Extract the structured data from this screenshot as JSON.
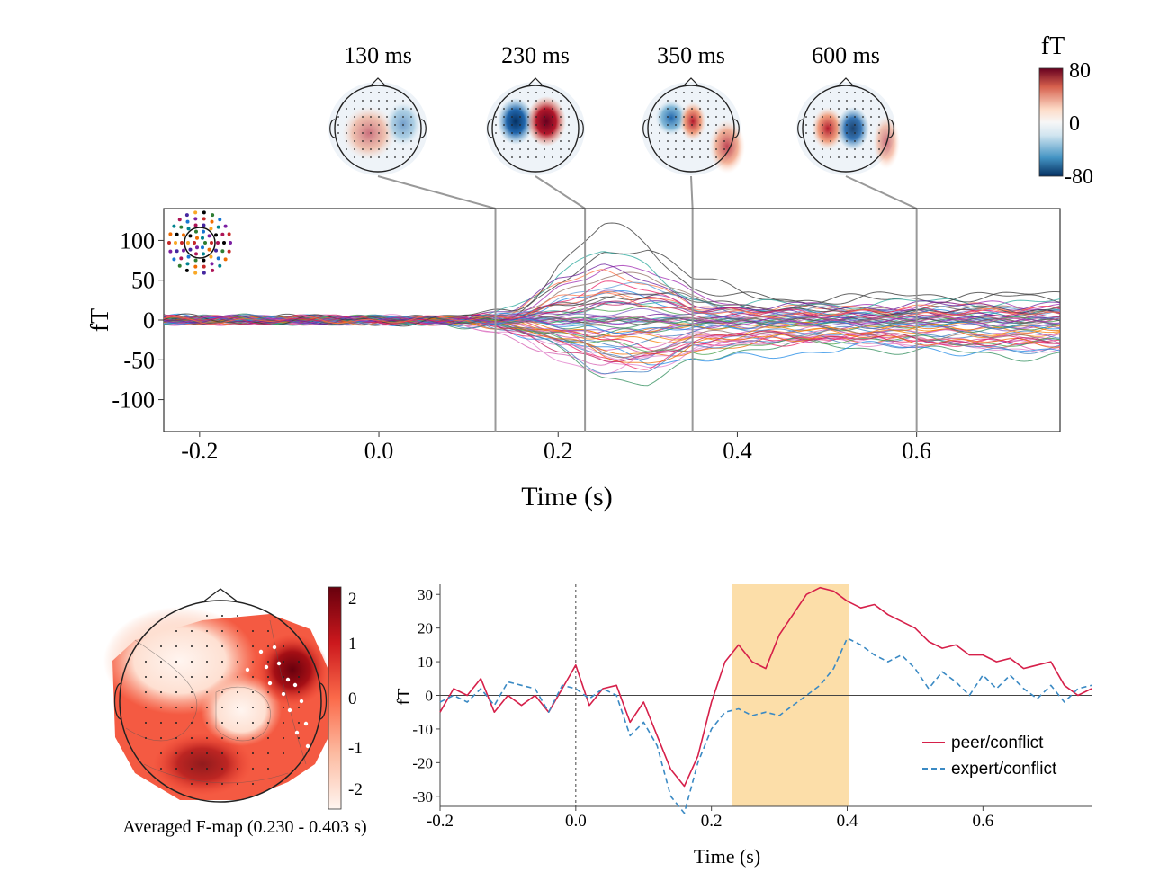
{
  "top_panel": {
    "topomaps": [
      {
        "label": "130 ms",
        "time": 0.13,
        "pattern": "weak"
      },
      {
        "label": "230 ms",
        "time": 0.23,
        "pattern": "strong-dipole"
      },
      {
        "label": "350 ms",
        "time": 0.35,
        "pattern": "medium"
      },
      {
        "label": "600 ms",
        "time": 0.6,
        "pattern": "central-dipole"
      }
    ],
    "colorbar": {
      "unit": "fT",
      "ticks": [
        "80",
        "0",
        "-80"
      ],
      "colors": [
        "#67001f",
        "#d6604d",
        "#fddbc7",
        "#f7f7f7",
        "#d1e5f0",
        "#4393c3",
        "#053061"
      ]
    }
  },
  "bottom_left": {
    "caption": "Averaged F-map (0.230 - 0.403 s)",
    "colorbar_ticks": [
      "2",
      "1",
      "0",
      "-1",
      "-2"
    ],
    "colors": [
      "#fff5f0",
      "#fcbba1",
      "#fb6a4a",
      "#cb181d",
      "#67000d"
    ]
  },
  "chart_data": [
    {
      "type": "line",
      "title": "",
      "xlabel": "Time (s)",
      "ylabel": "fT",
      "xlim": [
        -0.24,
        0.76
      ],
      "ylim": [
        -140,
        140
      ],
      "xticks": [
        "-0.2",
        "0.0",
        "0.2",
        "0.4",
        "0.6"
      ],
      "yticks": [
        "100",
        "50",
        "0",
        "-50",
        "-100"
      ],
      "grid": false,
      "legend": "none",
      "series_count": 60,
      "envelope": {
        "x": [
          -0.24,
          0.0,
          0.05,
          0.1,
          0.15,
          0.2,
          0.25,
          0.3,
          0.35,
          0.4,
          0.5,
          0.6,
          0.7,
          0.76
        ],
        "max": [
          8,
          8,
          12,
          25,
          35,
          110,
          135,
          110,
          60,
          50,
          48,
          55,
          55,
          55
        ],
        "min": [
          -8,
          -8,
          -12,
          -25,
          -50,
          -80,
          -95,
          -90,
          -60,
          -55,
          -60,
          -70,
          -80,
          -80
        ]
      },
      "markers_x": [
        0.13,
        0.23,
        0.35,
        0.6
      ]
    },
    {
      "type": "line",
      "title": "",
      "xlabel": "Time (s)",
      "ylabel": "fT",
      "xlim": [
        -0.2,
        0.76
      ],
      "ylim": [
        -33,
        33
      ],
      "xticks": [
        "-0.2",
        "0.0",
        "0.2",
        "0.4",
        "0.6"
      ],
      "yticks": [
        "30",
        "20",
        "10",
        "0",
        "-10",
        "-20",
        "-30"
      ],
      "highlight": [
        0.23,
        0.403
      ],
      "highlight_color": "#fbd89a",
      "vline": 0.0,
      "legend": "bottom-right",
      "series": [
        {
          "name": "peer/conflict",
          "color": "#d6204a",
          "dash": "",
          "x": [
            -0.2,
            -0.18,
            -0.16,
            -0.14,
            -0.12,
            -0.1,
            -0.08,
            -0.06,
            -0.04,
            -0.02,
            0.0,
            0.02,
            0.04,
            0.06,
            0.08,
            0.1,
            0.12,
            0.14,
            0.16,
            0.18,
            0.2,
            0.22,
            0.24,
            0.26,
            0.28,
            0.3,
            0.32,
            0.34,
            0.36,
            0.38,
            0.4,
            0.42,
            0.44,
            0.46,
            0.48,
            0.5,
            0.52,
            0.54,
            0.56,
            0.58,
            0.6,
            0.62,
            0.64,
            0.66,
            0.68,
            0.7,
            0.72,
            0.74,
            0.76
          ],
          "values": [
            -5,
            2,
            0,
            5,
            -5,
            0,
            -3,
            0,
            -5,
            2,
            9,
            -3,
            2,
            3,
            -8,
            -2,
            -12,
            -22,
            -27,
            -18,
            -2,
            10,
            15,
            10,
            8,
            18,
            24,
            30,
            32,
            31,
            28,
            26,
            27,
            24,
            22,
            20,
            16,
            14,
            15,
            12,
            12,
            10,
            11,
            8,
            9,
            10,
            3,
            0,
            2
          ]
        },
        {
          "name": "expert/conflict",
          "color": "#3b8ac4",
          "dash": "6,4",
          "x": [
            -0.2,
            -0.18,
            -0.16,
            -0.14,
            -0.12,
            -0.1,
            -0.08,
            -0.06,
            -0.04,
            -0.02,
            0.0,
            0.02,
            0.04,
            0.06,
            0.08,
            0.1,
            0.12,
            0.14,
            0.16,
            0.18,
            0.2,
            0.22,
            0.24,
            0.26,
            0.28,
            0.3,
            0.32,
            0.34,
            0.36,
            0.38,
            0.4,
            0.42,
            0.44,
            0.46,
            0.48,
            0.5,
            0.52,
            0.54,
            0.56,
            0.58,
            0.6,
            0.62,
            0.64,
            0.66,
            0.68,
            0.7,
            0.72,
            0.74,
            0.76
          ],
          "values": [
            -2,
            0,
            -2,
            2,
            -3,
            4,
            3,
            2,
            -5,
            3,
            2,
            -1,
            2,
            0,
            -12,
            -8,
            -15,
            -30,
            -35,
            -20,
            -10,
            -5,
            -4,
            -6,
            -5,
            -6,
            -3,
            0,
            3,
            8,
            17,
            15,
            12,
            10,
            12,
            8,
            2,
            7,
            4,
            0,
            6,
            2,
            6,
            2,
            -1,
            3,
            -2,
            2,
            3
          ]
        }
      ]
    }
  ]
}
